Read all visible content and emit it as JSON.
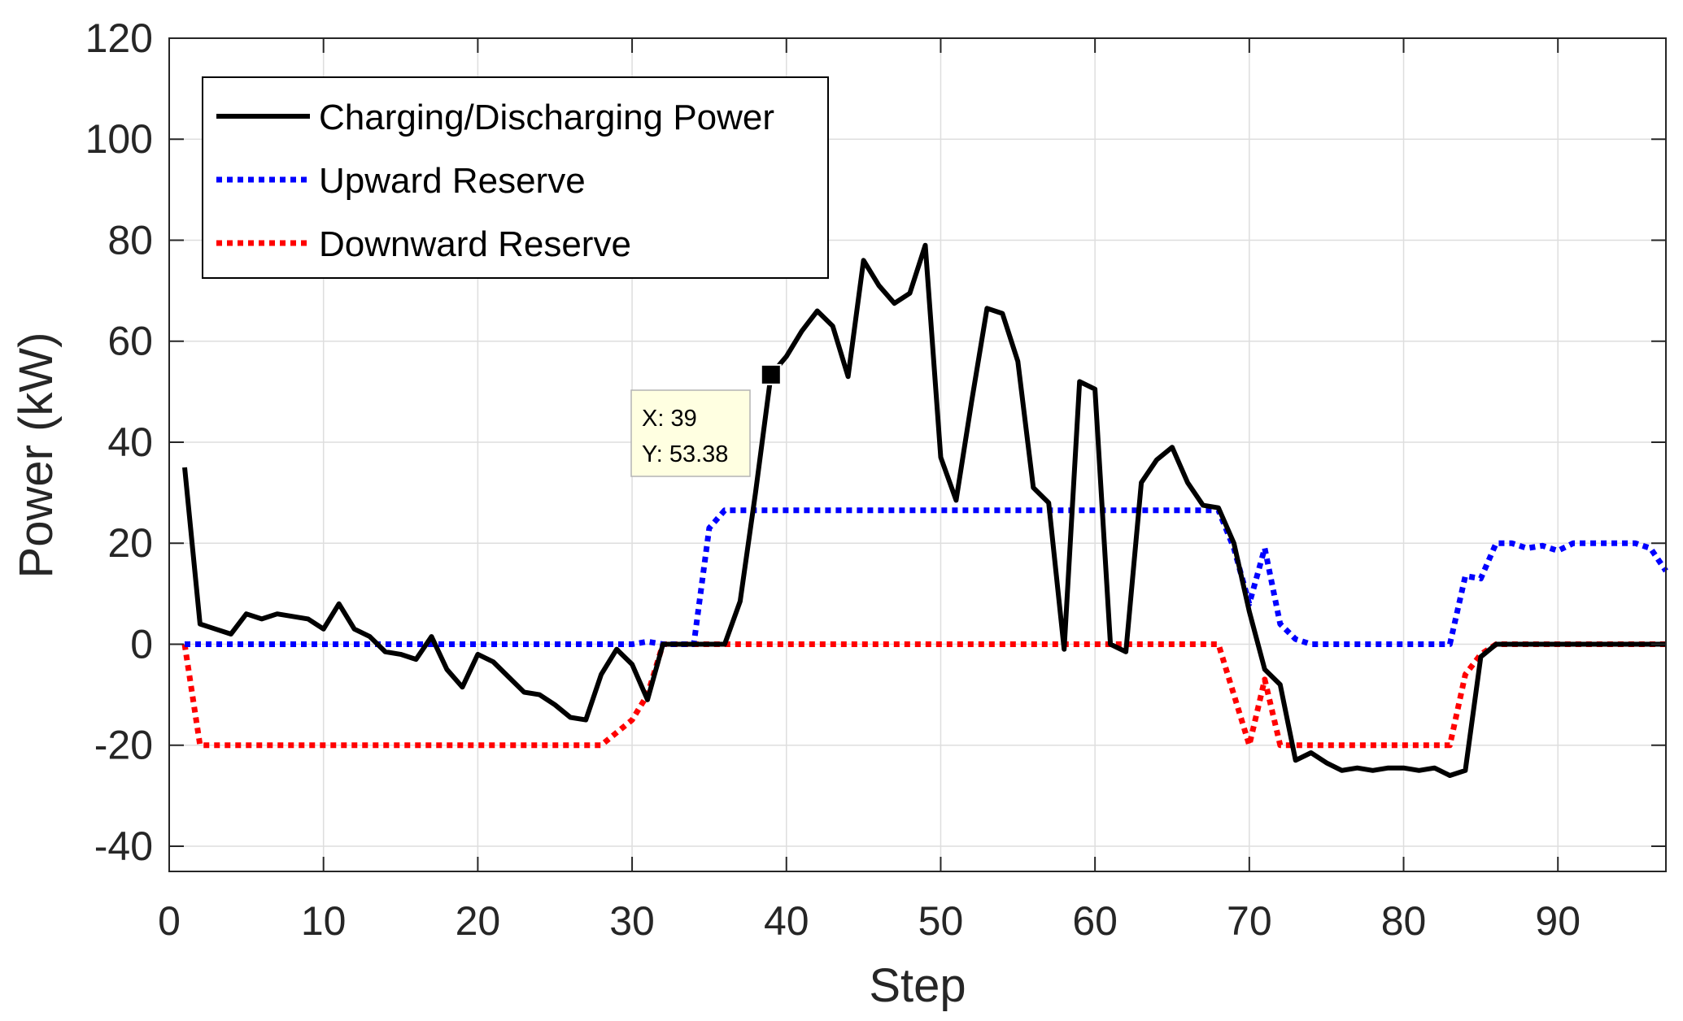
{
  "chart_data": {
    "type": "line",
    "title": "",
    "xlabel": "Step",
    "ylabel": "Power (kW)",
    "xlim": [
      0,
      97
    ],
    "ylim": [
      -45,
      120
    ],
    "xticks": [
      0,
      10,
      20,
      30,
      40,
      50,
      60,
      70,
      80,
      90
    ],
    "yticks": [
      -40,
      -20,
      0,
      20,
      40,
      60,
      80,
      100,
      120
    ],
    "grid": true,
    "legend_position": "top-left",
    "series": [
      {
        "name": "Charging/Discharging Power",
        "color": "#000000",
        "style": "solid",
        "x": [
          1,
          2,
          3,
          4,
          5,
          6,
          7,
          8,
          9,
          10,
          11,
          12,
          13,
          14,
          15,
          16,
          17,
          18,
          19,
          20,
          21,
          22,
          23,
          24,
          25,
          26,
          27,
          28,
          29,
          30,
          31,
          32,
          33,
          34,
          35,
          36,
          37,
          38,
          39,
          40,
          41,
          42,
          43,
          44,
          45,
          46,
          47,
          48,
          49,
          50,
          51,
          52,
          53,
          54,
          55,
          56,
          57,
          58,
          59,
          60,
          61,
          62,
          63,
          64,
          65,
          66,
          67,
          68,
          69,
          70,
          71,
          72,
          73,
          74,
          75,
          76,
          77,
          78,
          79,
          80,
          81,
          82,
          83,
          84,
          85,
          86,
          87,
          88,
          89,
          90,
          91,
          92,
          93,
          94,
          95,
          96,
          97
        ],
        "values": [
          35,
          4,
          3,
          2,
          6,
          5,
          6,
          5.5,
          5,
          3,
          8,
          3,
          1.5,
          -1.5,
          -2,
          -3,
          1.5,
          -5,
          -8.5,
          -2,
          -3.5,
          -6.5,
          -9.5,
          -10,
          -12,
          -14.5,
          -15,
          -6,
          -1,
          -4,
          -11,
          0,
          0,
          0,
          0,
          0,
          8.5,
          30,
          53.38,
          57,
          62,
          66,
          63,
          53,
          76,
          71,
          67.5,
          69.5,
          79,
          37,
          28.5,
          48,
          66.5,
          65.5,
          56,
          31,
          28,
          -1,
          52,
          50.5,
          0,
          -1.5,
          32,
          36.5,
          39,
          32,
          27.5,
          27,
          20,
          6.5,
          -5,
          -8,
          -23,
          -21.5,
          -23.5,
          -25,
          -24.5,
          -25,
          -24.5,
          -24.5,
          -25,
          -24.5,
          -26,
          -25,
          -2.5,
          0,
          0,
          0,
          0,
          0,
          0,
          0,
          0,
          0,
          0,
          0,
          0
        ]
      },
      {
        "name": "Upward Reserve",
        "color": "#0000ff",
        "style": "dotted",
        "x": [
          1,
          2,
          3,
          4,
          5,
          6,
          7,
          8,
          9,
          10,
          11,
          12,
          13,
          14,
          15,
          16,
          17,
          18,
          19,
          20,
          21,
          22,
          23,
          24,
          25,
          26,
          27,
          28,
          29,
          30,
          31,
          32,
          33,
          34,
          35,
          36,
          37,
          38,
          39,
          40,
          41,
          42,
          43,
          44,
          45,
          46,
          47,
          48,
          49,
          50,
          51,
          52,
          53,
          54,
          55,
          56,
          57,
          58,
          59,
          60,
          61,
          62,
          63,
          64,
          65,
          66,
          67,
          68,
          69,
          70,
          71,
          72,
          73,
          74,
          75,
          76,
          77,
          78,
          79,
          80,
          81,
          82,
          83,
          84,
          85,
          86,
          87,
          88,
          89,
          90,
          91,
          92,
          93,
          94,
          95,
          96,
          97
        ],
        "values": [
          0,
          0,
          0,
          0,
          0,
          0,
          0,
          0,
          0,
          0,
          0,
          0,
          0,
          0,
          0,
          0,
          0,
          0,
          0,
          0,
          0,
          0,
          0,
          0,
          0,
          0,
          0,
          0,
          0,
          0,
          0.5,
          0,
          0,
          0,
          23,
          26.5,
          26.5,
          26.5,
          26.5,
          26.5,
          26.5,
          26.5,
          26.5,
          26.5,
          26.5,
          26.5,
          26.5,
          26.5,
          26.5,
          26.5,
          26.5,
          26.5,
          26.5,
          26.5,
          26.5,
          26.5,
          26.5,
          26.5,
          26.5,
          26.5,
          26.5,
          26.5,
          26.5,
          26.5,
          26.5,
          26.5,
          26.5,
          26.5,
          19,
          8,
          19,
          4,
          1,
          0,
          0,
          0,
          0,
          0,
          0,
          0,
          0,
          0,
          0,
          13.5,
          13,
          20,
          20,
          19,
          19.5,
          18.5,
          20,
          20,
          20,
          20,
          20,
          19,
          14.5
        ]
      },
      {
        "name": "Downward Reserve",
        "color": "#ff0000",
        "style": "dotted",
        "x": [
          1,
          2,
          3,
          4,
          5,
          6,
          7,
          8,
          9,
          10,
          11,
          12,
          13,
          14,
          15,
          16,
          17,
          18,
          19,
          20,
          21,
          22,
          23,
          24,
          25,
          26,
          27,
          28,
          29,
          30,
          31,
          32,
          33,
          34,
          35,
          36,
          37,
          38,
          39,
          40,
          41,
          42,
          43,
          44,
          45,
          46,
          47,
          48,
          49,
          50,
          51,
          52,
          53,
          54,
          55,
          56,
          57,
          58,
          59,
          60,
          61,
          62,
          63,
          64,
          65,
          66,
          67,
          68,
          69,
          70,
          71,
          72,
          73,
          74,
          75,
          76,
          77,
          78,
          79,
          80,
          81,
          82,
          83,
          84,
          85,
          86,
          87,
          88,
          89,
          90,
          91,
          92,
          93,
          94,
          95,
          96,
          97
        ],
        "values": [
          0,
          -20,
          -20,
          -20,
          -20,
          -20,
          -20,
          -20,
          -20,
          -20,
          -20,
          -20,
          -20,
          -20,
          -20,
          -20,
          -20,
          -20,
          -20,
          -20,
          -20,
          -20,
          -20,
          -20,
          -20,
          -20,
          -20,
          -20,
          -17.5,
          -15,
          -10,
          0,
          0,
          0,
          0,
          0,
          0,
          0,
          0,
          0,
          0,
          0,
          0,
          0,
          0,
          0,
          0,
          0,
          0,
          0,
          0,
          0,
          0,
          0,
          0,
          0,
          0,
          0,
          0,
          0,
          0,
          0,
          0,
          0,
          0,
          0,
          0,
          0,
          -10,
          -20,
          -7,
          -20,
          -20,
          -20,
          -20,
          -20,
          -20,
          -20,
          -20,
          -20,
          -20,
          -20,
          -20,
          -6,
          -2,
          0,
          0,
          0,
          0,
          0,
          0,
          0,
          0,
          0,
          0,
          0,
          0
        ]
      }
    ],
    "datatip": {
      "x": 39,
      "y": 53.38,
      "x_label": "X: 39",
      "y_label": "Y: 53.38"
    }
  }
}
